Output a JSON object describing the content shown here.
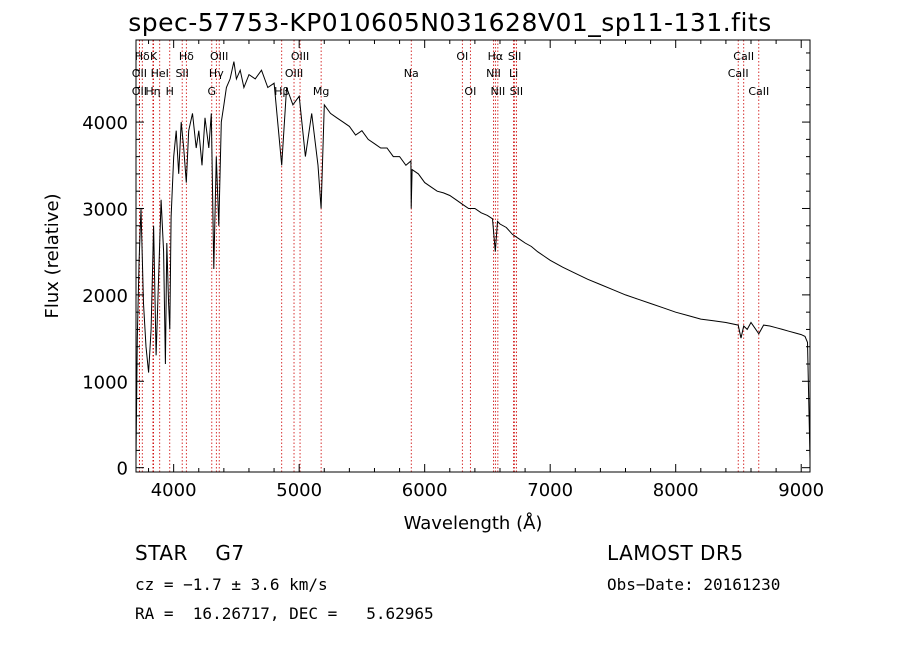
{
  "chart_data": {
    "type": "line",
    "title": "spec-57753-KP010605N031628V01_sp11-131.fits",
    "xlabel": "Wavelength (Å)",
    "ylabel": "Flux (relative)",
    "xlim": [
      3700,
      9070
    ],
    "ylim": [
      -50,
      4950
    ],
    "xticks": [
      4000,
      5000,
      6000,
      7000,
      8000,
      9000
    ],
    "yticks": [
      0,
      1000,
      2000,
      3000,
      4000
    ],
    "series": [
      {
        "x": [
          3700,
          3710,
          3725,
          3740,
          3760,
          3780,
          3800,
          3820,
          3840,
          3860,
          3880,
          3900,
          3920,
          3934,
          3945,
          3960,
          3969,
          3980,
          4000,
          4020,
          4040,
          4060,
          4080,
          4101,
          4120,
          4150,
          4180,
          4200,
          4226,
          4250,
          4280,
          4300,
          4320,
          4340,
          4360,
          4380,
          4400,
          4420,
          4450,
          4480,
          4500,
          4530,
          4560,
          4600,
          4650,
          4700,
          4750,
          4800,
          4861,
          4900,
          4950,
          5000,
          5050,
          5100,
          5150,
          5175,
          5200,
          5250,
          5300,
          5350,
          5400,
          5450,
          5500,
          5550,
          5600,
          5650,
          5700,
          5750,
          5800,
          5850,
          5890,
          5893,
          5900,
          5950,
          6000,
          6050,
          6100,
          6150,
          6200,
          6250,
          6300,
          6350,
          6400,
          6450,
          6500,
          6540,
          6563,
          6580,
          6600,
          6650,
          6700,
          6750,
          6800,
          6850,
          6900,
          6950,
          7000,
          7100,
          7200,
          7300,
          7400,
          7500,
          7600,
          7700,
          7800,
          7900,
          8000,
          8100,
          8200,
          8300,
          8400,
          8498,
          8520,
          8542,
          8570,
          8600,
          8662,
          8700,
          8750,
          8800,
          8850,
          8900,
          8950,
          9000,
          9030,
          9050,
          9070
        ],
        "values": [
          100,
          1500,
          2400,
          3000,
          1900,
          1400,
          1100,
          1600,
          2800,
          1300,
          2200,
          3100,
          2500,
          1200,
          2600,
          1900,
          1600,
          2900,
          3600,
          3900,
          3400,
          4000,
          3700,
          3300,
          3900,
          4100,
          3700,
          3900,
          3500,
          4050,
          3700,
          4100,
          2300,
          3600,
          2800,
          4000,
          4200,
          4400,
          4500,
          4700,
          4500,
          4600,
          4400,
          4550,
          4500,
          4600,
          4400,
          4450,
          3500,
          4400,
          4200,
          4300,
          3600,
          4100,
          3500,
          3000,
          4200,
          4100,
          4050,
          4000,
          3950,
          3850,
          3900,
          3800,
          3750,
          3700,
          3700,
          3600,
          3600,
          3500,
          3550,
          3000,
          3450,
          3400,
          3300,
          3250,
          3200,
          3180,
          3150,
          3100,
          3050,
          3000,
          3000,
          2950,
          2920,
          2880,
          2500,
          2850,
          2820,
          2780,
          2700,
          2650,
          2600,
          2560,
          2500,
          2450,
          2400,
          2320,
          2250,
          2180,
          2120,
          2060,
          2000,
          1950,
          1900,
          1850,
          1800,
          1760,
          1720,
          1700,
          1680,
          1650,
          1500,
          1640,
          1600,
          1680,
          1550,
          1650,
          1640,
          1620,
          1600,
          1580,
          1560,
          1540,
          1520,
          1450,
          100
        ]
      }
    ],
    "lines": [
      {
        "label": "Hδ",
        "x": 3750
      },
      {
        "label": "K",
        "x": 3840
      },
      {
        "label": "Hδ",
        "x": 4101
      },
      {
        "label": "OII",
        "x": 3727
      },
      {
        "label": "HeI",
        "x": 3889
      },
      {
        "label": "SII",
        "x": 4068
      },
      {
        "label": "OII",
        "x": 3727
      },
      {
        "label": "Hη",
        "x": 3835
      },
      {
        "label": "H",
        "x": 3969
      },
      {
        "label": "OIII",
        "x": 4363
      },
      {
        "label": "Hγ",
        "x": 4340
      },
      {
        "label": "G",
        "x": 4304
      },
      {
        "label": "OIII",
        "x": 5007
      },
      {
        "label": "OIII",
        "x": 4959
      },
      {
        "label": "Hβ",
        "x": 4861
      },
      {
        "label": "Mg",
        "x": 5175
      },
      {
        "label": "Na",
        "x": 5893
      },
      {
        "label": "OI",
        "x": 6300
      },
      {
        "label": "OI",
        "x": 6364
      },
      {
        "label": "Hα",
        "x": 6563
      },
      {
        "label": "NII",
        "x": 6548
      },
      {
        "label": "NII",
        "x": 6583
      },
      {
        "label": "SII",
        "x": 6717
      },
      {
        "label": "Li",
        "x": 6708
      },
      {
        "label": "SII",
        "x": 6731
      },
      {
        "label": "CaII",
        "x": 8542
      },
      {
        "label": "CaII",
        "x": 8498
      },
      {
        "label": "CaII",
        "x": 8662
      }
    ],
    "grid": false
  },
  "footer": {
    "class_label": "STAR    G7",
    "survey": "LAMOST DR5",
    "cz": "cz = −1.7 ± 3.6 km/s",
    "obsdate": "Obs−Date: 20161230",
    "radec": "RA =  16.26717, DEC =   5.62965"
  },
  "colors": {
    "line_marker": "#cc0000",
    "spectrum": "#000000"
  }
}
